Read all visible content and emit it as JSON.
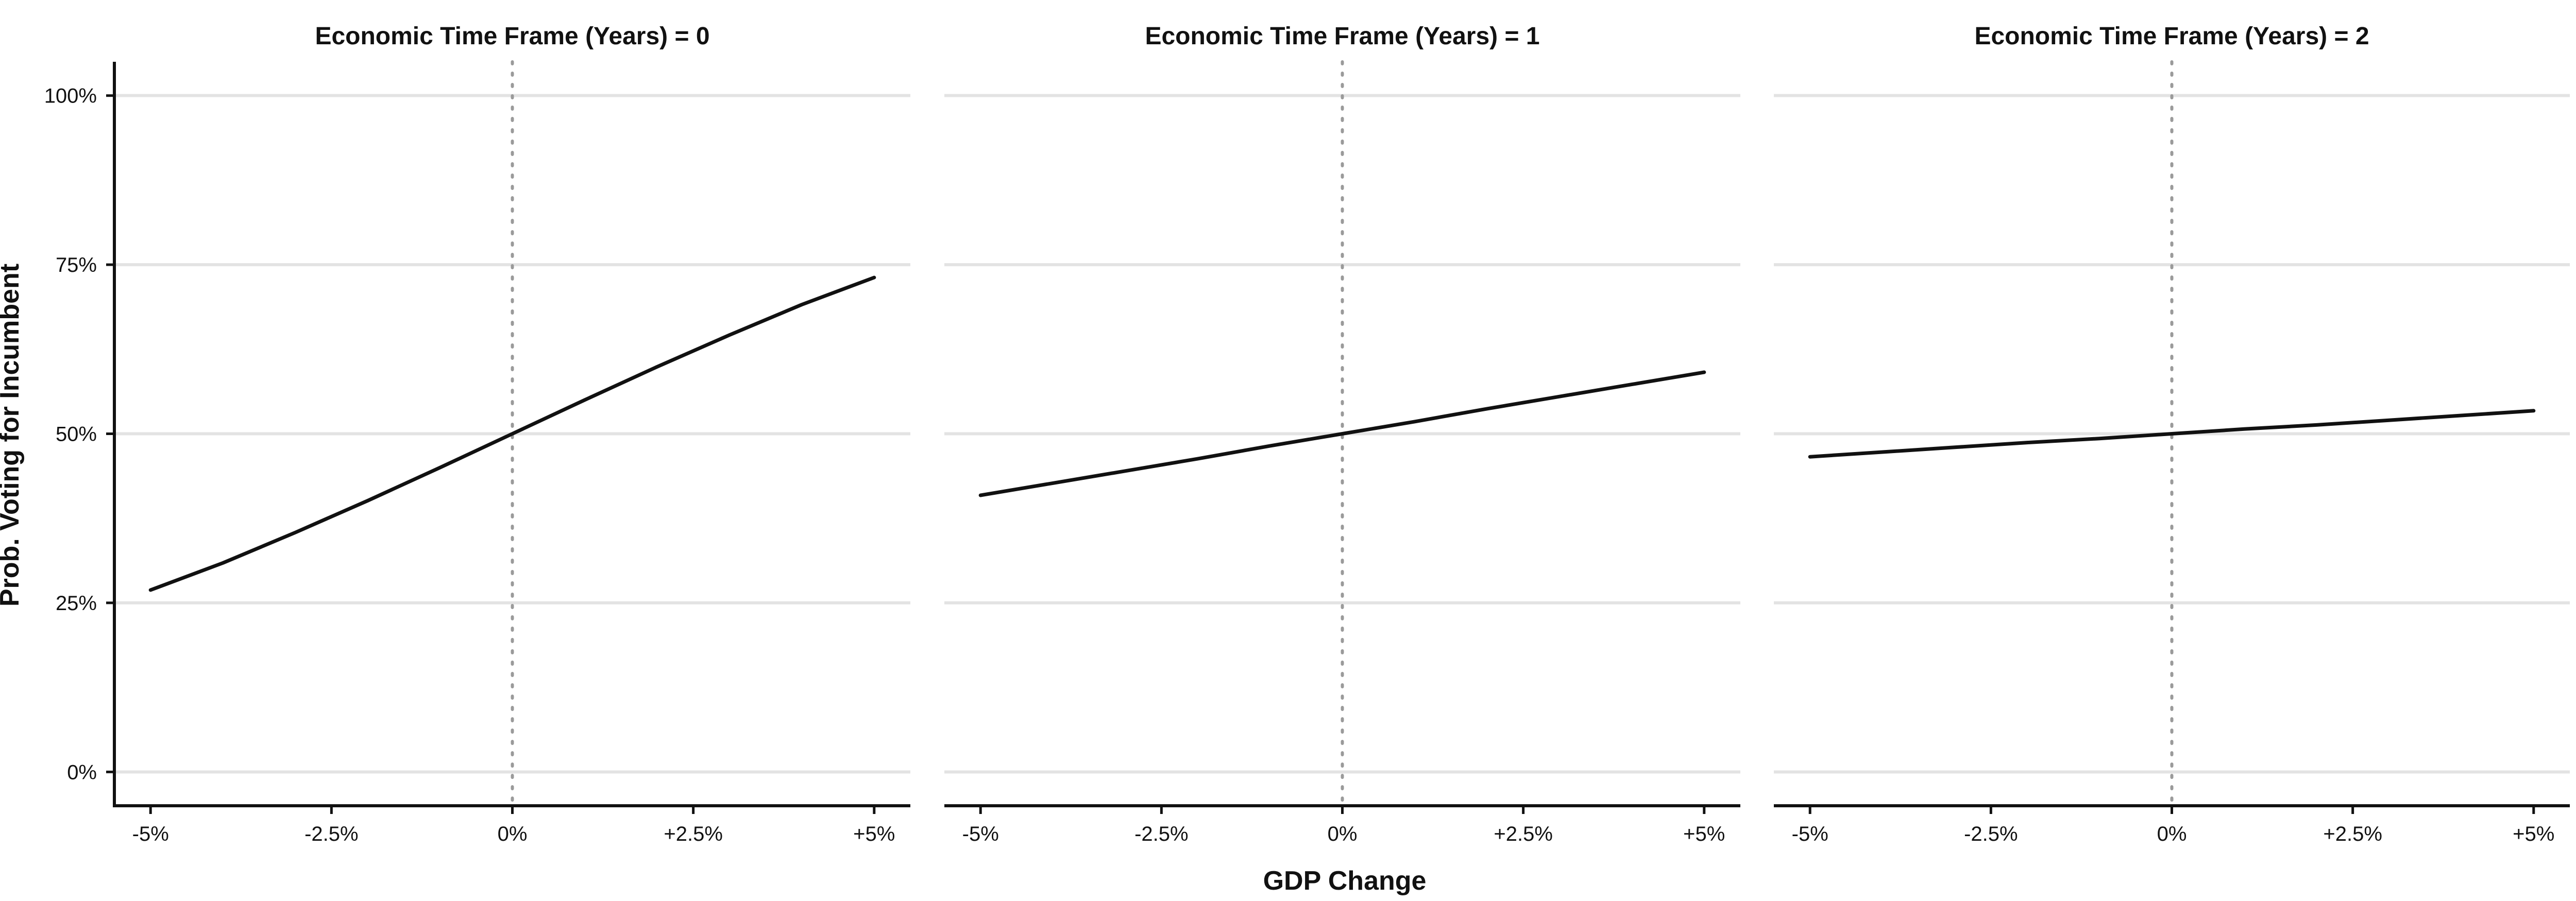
{
  "chart_data": {
    "type": "line",
    "xlabel": "GDP Change",
    "ylabel": "Prob. Voting for Incumbent",
    "xlim": [
      -5.5,
      5.5
    ],
    "ylim": [
      -5,
      105
    ],
    "x_ticks": [
      -5,
      -2.5,
      0,
      2.5,
      5
    ],
    "x_tick_labels": [
      "-5%",
      "-2.5%",
      "0%",
      "+2.5%",
      "+5%"
    ],
    "y_ticks": [
      0,
      25,
      50,
      75,
      100
    ],
    "y_tick_labels": [
      "0%",
      "25%",
      "50%",
      "75%",
      "100%"
    ],
    "reference_line_x": 0,
    "grid": "horizontal major",
    "legend": "none",
    "panels": [
      {
        "title": "Economic Time Frame (Years) = 0",
        "x": [
          -5,
          -4,
          -3,
          -2,
          -1,
          0,
          1,
          2,
          3,
          4,
          5
        ],
        "y": [
          26.9,
          30.9,
          35.4,
          40.1,
          45.0,
          50.0,
          55.0,
          59.9,
          64.6,
          69.1,
          73.1
        ]
      },
      {
        "title": "Economic Time Frame (Years) = 1",
        "x": [
          -5,
          -4,
          -3,
          -2,
          -1,
          0,
          1,
          2,
          3,
          4,
          5
        ],
        "y": [
          40.9,
          42.7,
          44.5,
          46.3,
          48.2,
          50.0,
          51.8,
          53.7,
          55.5,
          57.3,
          59.1
        ]
      },
      {
        "title": "Economic Time Frame (Years) = 2",
        "x": [
          -5,
          -4,
          -3,
          -2,
          -1,
          0,
          1,
          2,
          3,
          4,
          5
        ],
        "y": [
          46.6,
          47.3,
          48.0,
          48.7,
          49.3,
          50.0,
          50.7,
          51.3,
          52.0,
          52.7,
          53.4
        ]
      }
    ]
  },
  "colors": {
    "line": "#111111",
    "grid": "#e3e3e3",
    "reference": "#9a9a9a",
    "axis": "#111111"
  }
}
